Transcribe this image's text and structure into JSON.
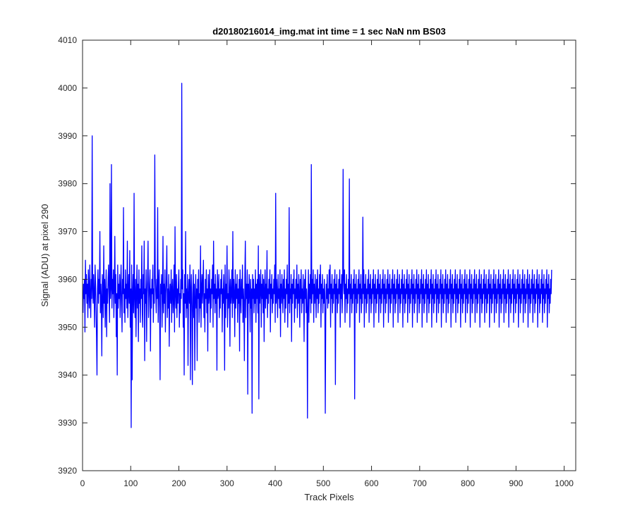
{
  "chart_data": {
    "type": "line",
    "title": "d20180216014_img.mat int time = 1 sec  NaN nm BS03",
    "xlabel": "Track Pixels",
    "ylabel": "Signal (ADU) at pixel 290",
    "xlim": [
      0,
      1024
    ],
    "ylim": [
      3920,
      4010
    ],
    "xticks": [
      0,
      100,
      200,
      300,
      400,
      500,
      600,
      700,
      800,
      900,
      1000
    ],
    "yticks": [
      3920,
      3930,
      3940,
      3950,
      3960,
      3970,
      3980,
      3990,
      4000,
      4010
    ],
    "grid": false,
    "legend": "none",
    "series": [
      {
        "color": "#0000ff",
        "x_start": 1,
        "x_step": 1,
        "values": [
          3953,
          3959,
          3956,
          3960,
          3949,
          3964,
          3957,
          3961,
          3955,
          3959,
          3952,
          3962,
          3958,
          3954,
          3963,
          3957,
          3952,
          3960,
          3956,
          3990,
          3958,
          3955,
          3961,
          3957,
          3950,
          3963,
          3959,
          3954,
          3948,
          3940,
          3958,
          3962,
          3955,
          3960,
          3957,
          3970,
          3953,
          3959,
          3956,
          3944,
          3961,
          3958,
          3952,
          3967,
          3955,
          3960,
          3950,
          3957,
          3962,
          3948,
          3958,
          3955,
          3960,
          3963,
          3957,
          3951,
          3980,
          3956,
          3958,
          3984,
          3954,
          3960,
          3957,
          3962,
          3952,
          3958,
          3969,
          3955,
          3961,
          3948,
          3957,
          3940,
          3963,
          3954,
          3959,
          3956,
          3961,
          3952,
          3958,
          3963,
          3955,
          3949,
          3960,
          3957,
          3975,
          3953,
          3958,
          3951,
          3962,
          3956,
          3959,
          3954,
          3968,
          3952,
          3957,
          3961,
          3955,
          3966,
          3950,
          3958,
          3929,
          3963,
          3939,
          3957,
          3961,
          3953,
          3978,
          3956,
          3952,
          3960,
          3948,
          3957,
          3963,
          3954,
          3959,
          3947,
          3962,
          3955,
          3958,
          3951,
          3960,
          3956,
          3967,
          3953,
          3950,
          3961,
          3957,
          3968,
          3943,
          3958,
          3955,
          3962,
          3947,
          3957,
          3960,
          3968,
          3952,
          3956,
          3959,
          3962,
          3945,
          3958,
          3954,
          3960,
          3957,
          3963,
          3951,
          3958,
          3955,
          3986,
          3961,
          3957,
          3953,
          3960,
          3956,
          3975,
          3951,
          3958,
          3962,
          3954,
          3939,
          3959,
          3957,
          3961,
          3950,
          3956,
          3969,
          3953,
          3959,
          3955,
          3962,
          3949,
          3957,
          3960,
          3967,
          3952,
          3958,
          3954,
          3961,
          3946,
          3957,
          3959,
          3955,
          3962,
          3951,
          3958,
          3960,
          3953,
          3956,
          3963,
          3949,
          3971,
          3957,
          3954,
          3961,
          3952,
          3958,
          3955,
          3959,
          3962,
          3950,
          3957,
          3953,
          3960,
          3956,
          4001,
          3958,
          3962,
          3950,
          3957,
          3940,
          3961,
          3955,
          3970,
          3952,
          3958,
          3954,
          3961,
          3942,
          3957,
          3960,
          3955,
          3963,
          3939,
          3958,
          3961,
          3953,
          3938,
          3957,
          3962,
          3952,
          3959,
          3941,
          3956,
          3961,
          3954,
          3958,
          3943,
          3960,
          3956,
          3962,
          3951,
          3957,
          3954,
          3967,
          3950,
          3958,
          3961,
          3955,
          3959,
          3964,
          3952,
          3957,
          3949,
          3960,
          3956,
          3962,
          3953,
          3958,
          3945,
          3961,
          3955,
          3957,
          3962,
          3951,
          3958,
          3954,
          3960,
          3957,
          3963,
          3950,
          3968,
          3956,
          3959,
          3953,
          3961,
          3955,
          3958,
          3941,
          3962,
          3956,
          3957,
          3961,
          3952,
          3958,
          3954,
          3960,
          3957,
          3962,
          3949,
          3958,
          3955,
          3961,
          3957,
          3941,
          3963,
          3952,
          3959,
          3956,
          3967,
          3950,
          3957,
          3954,
          3962,
          3958,
          3946,
          3960,
          3955,
          3957,
          3962,
          3952,
          3970,
          3955,
          3960,
          3957,
          3948,
          3962,
          3954,
          3959,
          3956,
          3961,
          3951,
          3958,
          3955,
          3960,
          3945,
          3962,
          3957,
          3953,
          3960,
          3956,
          3963,
          3951,
          3958,
          3955,
          3943,
          3961,
          3968,
          3952,
          3959,
          3956,
          3962,
          3936,
          3959,
          3955,
          3961,
          3957,
          3949,
          3960,
          3954,
          3958,
          3932,
          3961,
          3956,
          3960,
          3953,
          3958,
          3955,
          3962,
          3951,
          3959,
          3956,
          3960,
          3953,
          3967,
          3935,
          3961,
          3955,
          3958,
          3962,
          3950,
          3959,
          3956,
          3961,
          3953,
          3960,
          3947,
          3958,
          3962,
          3954,
          3959,
          3956,
          3966,
          3952,
          3958,
          3955,
          3960,
          3957,
          3962,
          3949,
          3959,
          3956,
          3961,
          3953,
          3958,
          3955,
          3960,
          3957,
          3963,
          3951,
          3978,
          3955,
          3960,
          3957,
          3952,
          3961,
          3956,
          3958,
          3954,
          3962,
          3948,
          3959,
          3955,
          3961,
          3957,
          3953,
          3960,
          3956,
          3962,
          3951,
          3958,
          3954,
          3960,
          3957,
          3963,
          3950,
          3959,
          3955,
          3975,
          3953,
          3958,
          3956,
          3961,
          3947,
          3959,
          3955,
          3960,
          3957,
          3962,
          3951,
          3958,
          3954,
          3960,
          3956,
          3963,
          3952,
          3959,
          3955,
          3961,
          3957,
          3950,
          3960,
          3956,
          3962,
          3953,
          3958,
          3955,
          3961,
          3957,
          3947,
          3960,
          3956,
          3962,
          3953,
          3958,
          3954,
          3931,
          3957,
          3962,
          3951,
          3959,
          3956,
          3961,
          3953,
          3984,
          3955,
          3960,
          3957,
          3962,
          3951,
          3959,
          3955,
          3961,
          3957,
          3952,
          3960,
          3956,
          3962,
          3953,
          3958,
          3955,
          3961,
          3957,
          3963,
          3950,
          3959,
          3956,
          3961,
          3953,
          3958,
          3955,
          3960,
          3957,
          3932,
          3952,
          3959,
          3956,
          3961,
          3954,
          3958,
          3955,
          3962,
          3957,
          3963,
          3950,
          3959,
          3956,
          3961,
          3953,
          3958,
          3955,
          3960,
          3957,
          3962,
          3938,
          3959,
          3956,
          3961,
          3953,
          3958,
          3955,
          3960,
          3957,
          3962,
          3950,
          3959,
          3956,
          3961,
          3953,
          3958,
          3983,
          3960,
          3957,
          3962,
          3951,
          3959,
          3956,
          3961,
          3953,
          3958,
          3955,
          3960,
          3957,
          3981,
          3950,
          3959,
          3956,
          3961,
          3953,
          3958,
          3955,
          3960,
          3957,
          3962,
          3935,
          3959,
          3956,
          3961,
          3953,
          3958,
          3955,
          3960,
          3957,
          3962,
          3951,
          3959,
          3956,
          3961,
          3953,
          3958,
          3955,
          3973,
          3957,
          3962,
          3950,
          3959,
          3956,
          3961,
          3953,
          3958,
          3955,
          3960,
          3957,
          3962,
          3951,
          3959,
          3956,
          3961,
          3953,
          3958,
          3955,
          3960,
          3957,
          3962,
          3950,
          3959,
          3956,
          3961,
          3953,
          3958,
          3955,
          3960,
          3957,
          3962,
          3951,
          3959,
          3956,
          3961,
          3953,
          3958,
          3955,
          3960,
          3957,
          3962,
          3950,
          3959,
          3956,
          3961,
          3953,
          3958,
          3955,
          3960,
          3957,
          3962,
          3951,
          3959,
          3956,
          3961,
          3953,
          3958,
          3955,
          3960,
          3957,
          3962,
          3950,
          3959,
          3956,
          3961,
          3953,
          3958,
          3955,
          3960,
          3957,
          3962,
          3951,
          3959,
          3956,
          3961,
          3953,
          3958,
          3955,
          3960,
          3957,
          3962,
          3950,
          3959,
          3956,
          3961,
          3953,
          3958,
          3955,
          3960,
          3957,
          3962,
          3951,
          3959,
          3956,
          3961,
          3953,
          3958,
          3955,
          3960,
          3957,
          3962,
          3950,
          3959,
          3956,
          3961,
          3953,
          3958,
          3955,
          3960,
          3957,
          3962,
          3951,
          3959,
          3956,
          3961,
          3953,
          3958,
          3955,
          3960,
          3957,
          3962,
          3950,
          3959,
          3956,
          3961,
          3953,
          3958,
          3955,
          3960,
          3957,
          3962,
          3951,
          3959,
          3956,
          3961,
          3953,
          3958,
          3955,
          3960,
          3957,
          3962,
          3950,
          3959,
          3956,
          3961,
          3953,
          3958,
          3955,
          3960,
          3957,
          3962,
          3951,
          3959,
          3956,
          3961,
          3953,
          3958,
          3955,
          3960,
          3957,
          3962,
          3950,
          3959,
          3956,
          3961,
          3953,
          3958,
          3955,
          3960,
          3957,
          3962,
          3951,
          3959,
          3956,
          3961,
          3953,
          3958,
          3955,
          3960,
          3957,
          3962,
          3950,
          3959,
          3956,
          3961,
          3953,
          3958,
          3955,
          3960,
          3957,
          3962,
          3951,
          3959,
          3956,
          3961,
          3953,
          3958,
          3955,
          3960,
          3957,
          3962,
          3950,
          3959,
          3956,
          3961,
          3953,
          3958,
          3955,
          3960,
          3957,
          3962,
          3951,
          3959,
          3956,
          3961,
          3953,
          3958,
          3955,
          3960,
          3957,
          3962,
          3950,
          3959,
          3956,
          3961,
          3953,
          3958,
          3955,
          3960,
          3957,
          3962,
          3951,
          3959,
          3956,
          3961,
          3953,
          3958,
          3955,
          3960,
          3957,
          3962,
          3950,
          3959,
          3956,
          3961,
          3953,
          3958,
          3955,
          3960,
          3957,
          3962,
          3951,
          3959,
          3956,
          3961,
          3953,
          3958,
          3955,
          3960,
          3957,
          3962,
          3950,
          3959,
          3956,
          3961,
          3953,
          3958,
          3955,
          3960,
          3957,
          3962,
          3951,
          3959,
          3956,
          3961,
          3953,
          3958,
          3955,
          3960,
          3957,
          3962,
          3950,
          3959,
          3956,
          3961,
          3953,
          3958,
          3955,
          3960,
          3957,
          3962,
          3951,
          3959,
          3956,
          3961,
          3953,
          3958,
          3955,
          3960,
          3957,
          3962,
          3950,
          3959,
          3956,
          3961,
          3953,
          3958,
          3955,
          3960,
          3957,
          3962,
          3951,
          3959,
          3956,
          3961,
          3953,
          3958,
          3955,
          3960,
          3957,
          3962,
          3950,
          3959,
          3956,
          3961,
          3953,
          3958,
          3955,
          3960,
          3957,
          3962,
          3951,
          3959,
          3956,
          3961,
          3953,
          3958,
          3955,
          3960,
          3957,
          3962,
          3950,
          3959,
          3956,
          3961,
          3953,
          3958,
          3955,
          3960,
          3957,
          3962,
          3951,
          3959,
          3956,
          3961,
          3953,
          3958,
          3955,
          3960,
          3957,
          3962,
          3950,
          3959,
          3956,
          3961,
          3953,
          3958,
          3955,
          3960,
          3957,
          3962,
          3951,
          3959,
          3956,
          3961,
          3953,
          3958,
          3955,
          3960,
          3957,
          3962,
          3950,
          3959,
          3956,
          3961,
          3953,
          3958,
          3955,
          3960,
          3957,
          3962
        ]
      }
    ]
  }
}
